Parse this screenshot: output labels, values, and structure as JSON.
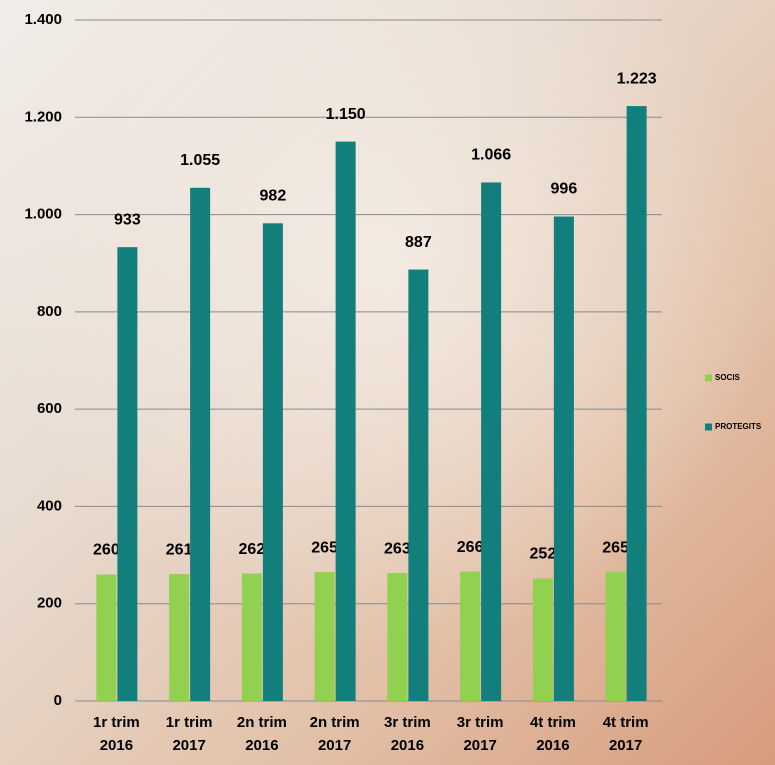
{
  "chart_data": {
    "type": "bar",
    "categories": [
      [
        "1r trim",
        "2016"
      ],
      [
        "1r trim",
        "2017"
      ],
      [
        "2n trim",
        "2016"
      ],
      [
        "2n trim",
        "2017"
      ],
      [
        "3r trim",
        "2016"
      ],
      [
        "3r trim",
        "2017"
      ],
      [
        "4t trim",
        "2016"
      ],
      [
        "4t trim",
        "2017"
      ]
    ],
    "series": [
      {
        "name": "SOCIS",
        "color": "#92d050",
        "values": [
          260,
          261,
          262,
          265,
          263,
          266,
          252,
          265
        ]
      },
      {
        "name": "PROTEGITS",
        "color": "#127f7c",
        "values": [
          933,
          1055,
          982,
          1150,
          887,
          1066,
          996,
          1223
        ],
        "value_labels": [
          "933",
          "1.055",
          "982",
          "1.150",
          "887",
          "1.066",
          "996",
          "1.223"
        ]
      }
    ],
    "ylim": [
      0,
      1400
    ],
    "yticks": [
      0,
      200,
      400,
      600,
      800,
      {
        "value": 1000,
        "label": "1.000"
      },
      {
        "value": 1200,
        "label": "1.200"
      },
      {
        "value": 1400,
        "label": "1.400"
      }
    ],
    "grid": true,
    "legend": "right"
  }
}
